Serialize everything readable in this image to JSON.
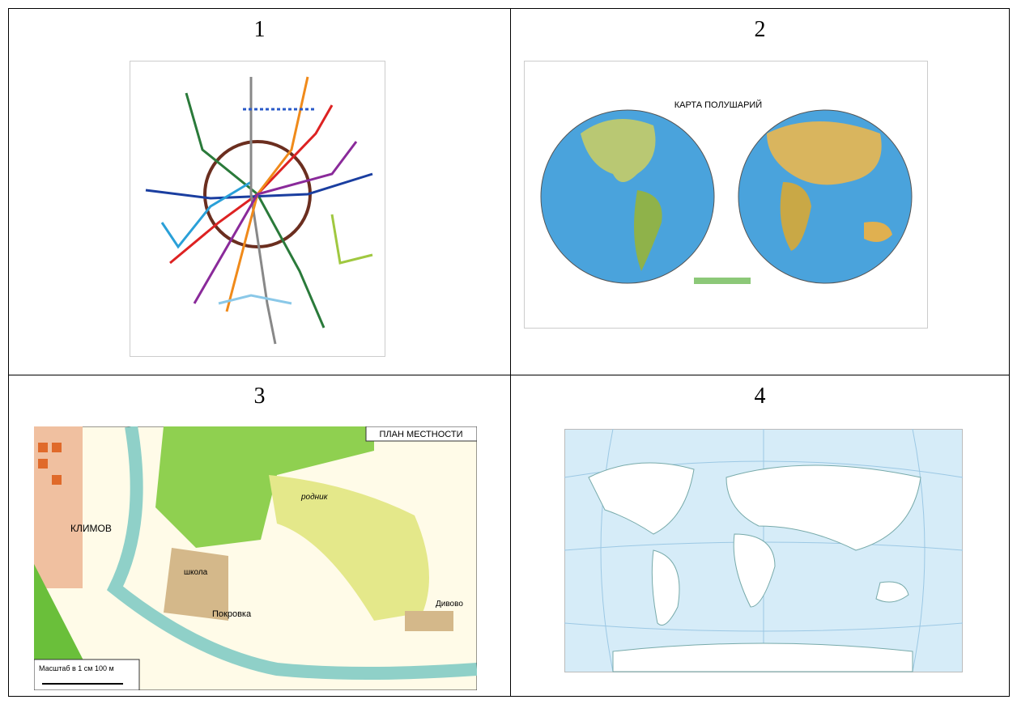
{
  "table": {
    "cells": [
      {
        "number": "1"
      },
      {
        "number": "2",
        "map_title": "КАРТА ПОЛУШАРИЙ"
      },
      {
        "number": "3",
        "map_title": "ПЛАН МЕСТНОСТИ",
        "town": "КЛИМОВ",
        "village": "Покровка",
        "school": "школа",
        "hamlet": "Дивово",
        "spring": "родник",
        "scale": "Масштаб в 1 см 100 м"
      },
      {
        "number": "4"
      }
    ]
  }
}
